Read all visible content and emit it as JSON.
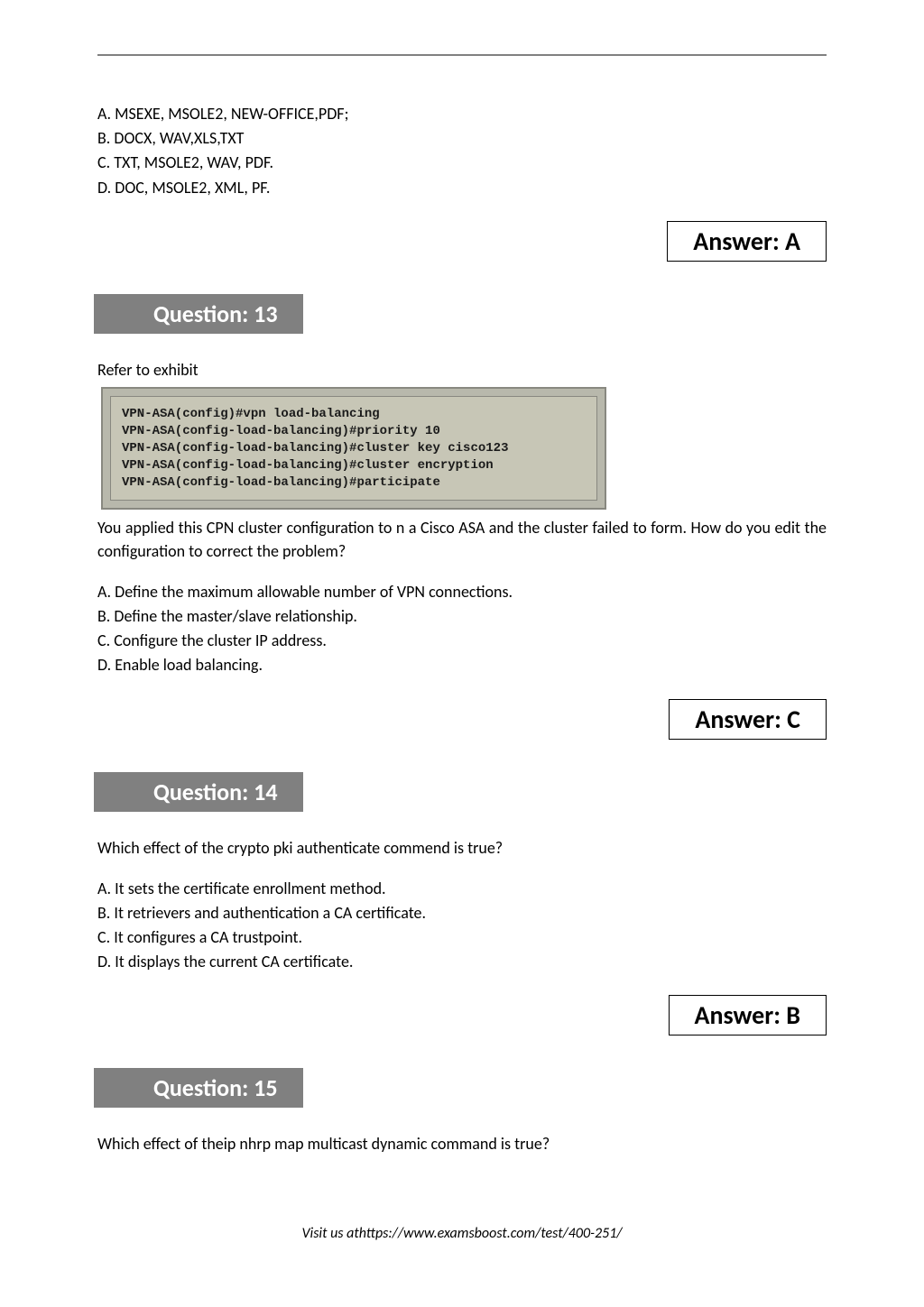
{
  "answer_label_prefix": "Answer: ",
  "q12": {
    "options": [
      "A. MSEXE, MSOLE2, NEW-OFFICE,PDF;",
      "B. DOCX, WAV,XLS,TXT",
      "C. TXT, MSOLE2, WAV, PDF.",
      "D. DOC, MSOLE2, XML, PF."
    ],
    "answer": "A"
  },
  "q13": {
    "header": "Question: 13",
    "stem": "Refer to exhibit",
    "exhibit": {
      "lines": [
        "VPN-ASA(config)#vpn load-balancing",
        "VPN-ASA(config-load-balancing)#priority 10",
        "VPN-ASA(config-load-balancing)#cluster key cisco123",
        "VPN-ASA(config-load-balancing)#cluster encryption",
        "VPN-ASA(config-load-balancing)#participate"
      ],
      "bg_outer": "#b8b8ac",
      "bg_inner": "#c7c6b6",
      "border_color": "#888880",
      "font_family": "Courier New",
      "font_size": 14
    },
    "body": "You applied this CPN  cluster configuration to n a Cisco ASA and the cluster failed to form. How do you edit the configuration to correct the problem?",
    "options": [
      "A. Define the maximum allowable number of VPN connections.",
      "B. Define the master/slave relationship.",
      "C. Configure the cluster IP address.",
      "D. Enable load balancing."
    ],
    "answer": "C"
  },
  "q14": {
    "header": "Question: 14",
    "stem": "Which effect of the crypto pki authenticate commend is true?",
    "options": [
      "A. It sets the certificate enrollment method.",
      "B. It retrievers and authentication a CA certificate.",
      "C. It configures a CA trustpoint.",
      "D. It displays the current CA certificate."
    ],
    "answer": "B"
  },
  "q15": {
    "header": "Question: 15",
    "stem": "Which effect of theip nhrp map multicast dynamic command is true?"
  },
  "footer": {
    "prefix": "Visit us at",
    "url": "https://www.examsboost.com/test/400-251/"
  },
  "colors": {
    "header_bg": "#808080",
    "header_fg": "#ffffff",
    "divider": "#808080",
    "text": "#000000",
    "page_bg": "#ffffff"
  }
}
